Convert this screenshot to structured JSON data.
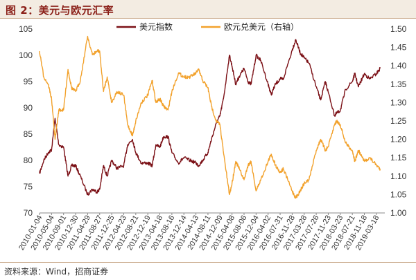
{
  "title": "图 2：美元与欧元汇率",
  "source": "资料来源：Wind，招商证券",
  "colors": {
    "series1": "#7b1016",
    "series2": "#f2a12b",
    "accent": "#8a1e17"
  },
  "chart_data": {
    "type": "line",
    "legend_position": "top-center",
    "grid": false,
    "y_left": {
      "range": [
        70,
        105
      ],
      "ticks": [
        70,
        75,
        80,
        85,
        90,
        95,
        100,
        105
      ]
    },
    "y_right": {
      "range": [
        1.0,
        1.5
      ],
      "ticks": [
        "1.00",
        "1.05",
        "1.10",
        "1.15",
        "1.20",
        "1.25",
        "1.30",
        "1.35",
        "1.40",
        "1.45",
        "1.50"
      ]
    },
    "x_tick_labels": [
      "2010-01-04",
      "2010-05-04",
      "2010-09-01",
      "2010-12-30",
      "2011-04-29",
      "2011-08-27",
      "2011-12-25",
      "2012-04-23",
      "2012-08-21",
      "2012-12-19",
      "2013-04-18",
      "2013-08-16",
      "2013-12-14",
      "2014-04-13",
      "2014-08-11",
      "2014-12-09",
      "2015-04-08",
      "2015-08-06",
      "2015-12-04",
      "2016-04-02",
      "2016-07-31",
      "2016-11-28",
      "2017-03-28",
      "2017-07-26",
      "2017-11-23",
      "2018-03-23",
      "2018-07-21",
      "2018-11-18",
      "2019-03-18"
    ],
    "series": [
      {
        "name": "美元指数",
        "axis": "left",
        "points": [
          [
            "2010-01-04",
            77.5
          ],
          [
            "2010-02-15",
            80.0
          ],
          [
            "2010-04-01",
            81.5
          ],
          [
            "2010-05-04",
            82.0
          ],
          [
            "2010-06-08",
            88.0
          ],
          [
            "2010-07-15",
            83.0
          ],
          [
            "2010-09-01",
            82.5
          ],
          [
            "2010-10-15",
            77.0
          ],
          [
            "2010-11-20",
            79.0
          ],
          [
            "2010-12-30",
            79.0
          ],
          [
            "2011-02-15",
            77.0
          ],
          [
            "2011-04-29",
            73.5
          ],
          [
            "2011-06-15",
            74.5
          ],
          [
            "2011-08-01",
            74.0
          ],
          [
            "2011-08-27",
            74.5
          ],
          [
            "2011-10-04",
            79.0
          ],
          [
            "2011-11-10",
            77.0
          ],
          [
            "2011-12-25",
            80.0
          ],
          [
            "2012-02-15",
            78.5
          ],
          [
            "2012-04-23",
            79.0
          ],
          [
            "2012-06-01",
            83.0
          ],
          [
            "2012-07-20",
            84.0
          ],
          [
            "2012-08-21",
            81.5
          ],
          [
            "2012-10-15",
            79.5
          ],
          [
            "2012-12-19",
            79.5
          ],
          [
            "2013-02-01",
            79.0
          ],
          [
            "2013-03-10",
            83.0
          ],
          [
            "2013-04-18",
            82.5
          ],
          [
            "2013-05-25",
            84.5
          ],
          [
            "2013-07-09",
            84.5
          ],
          [
            "2013-08-16",
            81.5
          ],
          [
            "2013-10-20",
            79.5
          ],
          [
            "2013-12-14",
            80.5
          ],
          [
            "2014-02-15",
            80.0
          ],
          [
            "2014-04-13",
            79.5
          ],
          [
            "2014-05-08",
            79.0
          ],
          [
            "2014-06-20",
            80.0
          ],
          [
            "2014-08-11",
            81.5
          ],
          [
            "2014-09-15",
            84.0
          ],
          [
            "2014-11-01",
            87.0
          ],
          [
            "2014-12-09",
            88.5
          ],
          [
            "2015-01-15",
            92.0
          ],
          [
            "2015-03-13",
            100.0
          ],
          [
            "2015-04-08",
            98.0
          ],
          [
            "2015-05-15",
            94.5
          ],
          [
            "2015-06-20",
            96.0
          ],
          [
            "2015-08-06",
            97.5
          ],
          [
            "2015-09-15",
            95.0
          ],
          [
            "2015-10-15",
            94.5
          ],
          [
            "2015-12-04",
            100.0
          ],
          [
            "2016-01-20",
            99.0
          ],
          [
            "2016-04-02",
            94.5
          ],
          [
            "2016-05-03",
            92.5
          ],
          [
            "2016-06-15",
            94.5
          ],
          [
            "2016-07-31",
            95.5
          ],
          [
            "2016-09-01",
            95.5
          ],
          [
            "2016-11-28",
            101.0
          ],
          [
            "2017-01-03",
            103.0
          ],
          [
            "2017-02-15",
            100.5
          ],
          [
            "2017-03-28",
            99.5
          ],
          [
            "2017-05-15",
            98.5
          ],
          [
            "2017-07-26",
            94.0
          ],
          [
            "2017-09-08",
            91.5
          ],
          [
            "2017-10-25",
            95.0
          ],
          [
            "2017-11-23",
            93.0
          ],
          [
            "2018-01-25",
            88.5
          ],
          [
            "2018-02-16",
            89.0
          ],
          [
            "2018-03-23",
            89.5
          ],
          [
            "2018-05-15",
            93.5
          ],
          [
            "2018-07-21",
            95.0
          ],
          [
            "2018-08-15",
            96.5
          ],
          [
            "2018-09-20",
            94.0
          ],
          [
            "2018-11-18",
            96.5
          ],
          [
            "2019-01-10",
            95.5
          ],
          [
            "2019-03-18",
            96.5
          ],
          [
            "2019-04-25",
            97.5
          ]
        ]
      },
      {
        "name": "欧元兑美元（右轴）",
        "axis": "right",
        "points": [
          [
            "2010-01-04",
            1.44
          ],
          [
            "2010-02-15",
            1.37
          ],
          [
            "2010-04-01",
            1.35
          ],
          [
            "2010-05-04",
            1.31
          ],
          [
            "2010-06-08",
            1.2
          ],
          [
            "2010-07-15",
            1.28
          ],
          [
            "2010-09-01",
            1.28
          ],
          [
            "2010-10-15",
            1.39
          ],
          [
            "2010-11-20",
            1.34
          ],
          [
            "2010-12-30",
            1.33
          ],
          [
            "2011-02-15",
            1.36
          ],
          [
            "2011-04-29",
            1.48
          ],
          [
            "2011-06-15",
            1.43
          ],
          [
            "2011-08-01",
            1.44
          ],
          [
            "2011-08-27",
            1.44
          ],
          [
            "2011-10-04",
            1.33
          ],
          [
            "2011-11-10",
            1.37
          ],
          [
            "2011-12-25",
            1.3
          ],
          [
            "2012-02-15",
            1.33
          ],
          [
            "2012-04-23",
            1.32
          ],
          [
            "2012-06-01",
            1.24
          ],
          [
            "2012-07-20",
            1.21
          ],
          [
            "2012-08-21",
            1.25
          ],
          [
            "2012-10-15",
            1.3
          ],
          [
            "2012-12-19",
            1.32
          ],
          [
            "2013-02-01",
            1.36
          ],
          [
            "2013-03-10",
            1.3
          ],
          [
            "2013-04-18",
            1.31
          ],
          [
            "2013-05-25",
            1.29
          ],
          [
            "2013-07-09",
            1.28
          ],
          [
            "2013-08-16",
            1.33
          ],
          [
            "2013-10-20",
            1.38
          ],
          [
            "2013-12-14",
            1.37
          ],
          [
            "2014-02-15",
            1.37
          ],
          [
            "2014-04-13",
            1.38
          ],
          [
            "2014-05-08",
            1.39
          ],
          [
            "2014-06-20",
            1.36
          ],
          [
            "2014-08-11",
            1.34
          ],
          [
            "2014-09-15",
            1.29
          ],
          [
            "2014-11-01",
            1.25
          ],
          [
            "2014-12-09",
            1.24
          ],
          [
            "2015-01-15",
            1.16
          ],
          [
            "2015-03-13",
            1.05
          ],
          [
            "2015-04-08",
            1.08
          ],
          [
            "2015-05-15",
            1.14
          ],
          [
            "2015-06-20",
            1.12
          ],
          [
            "2015-08-06",
            1.09
          ],
          [
            "2015-09-15",
            1.13
          ],
          [
            "2015-10-15",
            1.14
          ],
          [
            "2015-12-04",
            1.06
          ],
          [
            "2016-01-20",
            1.09
          ],
          [
            "2016-04-02",
            1.14
          ],
          [
            "2016-05-03",
            1.16
          ],
          [
            "2016-06-15",
            1.13
          ],
          [
            "2016-07-31",
            1.11
          ],
          [
            "2016-09-01",
            1.12
          ],
          [
            "2016-11-28",
            1.06
          ],
          [
            "2017-01-03",
            1.04
          ],
          [
            "2017-02-15",
            1.06
          ],
          [
            "2017-03-28",
            1.08
          ],
          [
            "2017-05-15",
            1.09
          ],
          [
            "2017-07-26",
            1.17
          ],
          [
            "2017-09-08",
            1.2
          ],
          [
            "2017-10-25",
            1.17
          ],
          [
            "2017-11-23",
            1.18
          ],
          [
            "2018-01-25",
            1.24
          ],
          [
            "2018-02-16",
            1.25
          ],
          [
            "2018-03-23",
            1.24
          ],
          [
            "2018-05-15",
            1.19
          ],
          [
            "2018-07-21",
            1.17
          ],
          [
            "2018-08-15",
            1.14
          ],
          [
            "2018-09-20",
            1.17
          ],
          [
            "2018-11-18",
            1.14
          ],
          [
            "2019-01-10",
            1.15
          ],
          [
            "2019-03-18",
            1.13
          ],
          [
            "2019-04-25",
            1.12
          ]
        ]
      }
    ]
  }
}
